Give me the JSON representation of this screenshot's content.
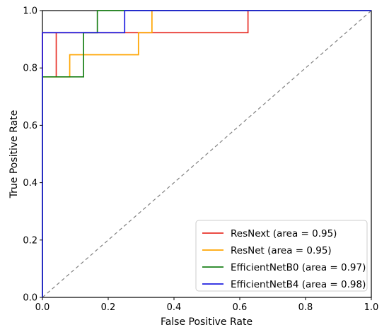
{
  "chart_data": {
    "type": "line",
    "title": "",
    "xlabel": "False Positive Rate",
    "ylabel": "True Positive Rate",
    "xlim": [
      0.0,
      1.0
    ],
    "ylim": [
      0.0,
      1.0
    ],
    "x_ticks": [
      "0.0",
      "0.2",
      "0.4",
      "0.6",
      "0.8",
      "1.0"
    ],
    "y_ticks": [
      "0.0",
      "0.2",
      "0.4",
      "0.6",
      "0.8",
      "1.0"
    ],
    "grid": false,
    "legend_position": "bottom-right",
    "diagonal": {
      "style": "dashed",
      "color": "#808080",
      "x": [
        0,
        1
      ],
      "y": [
        0,
        1
      ]
    },
    "series": [
      {
        "name": "ResNext (area = 0.95)",
        "color": "#e8322a",
        "x": [
          0,
          0,
          0.042,
          0.042,
          0.042,
          0.333,
          0.625,
          0.625,
          1.0
        ],
        "y": [
          0,
          0.923,
          0.923,
          0.769,
          0.923,
          0.923,
          0.923,
          1.0,
          1.0
        ]
      },
      {
        "name": "ResNet (area = 0.95)",
        "color": "#ffa500",
        "x": [
          0,
          0,
          0.042,
          0.083,
          0.083,
          0.292,
          0.292,
          0.333,
          0.333,
          1.0
        ],
        "y": [
          0,
          0.769,
          0.769,
          0.769,
          0.846,
          0.846,
          0.923,
          0.923,
          1.0,
          1.0
        ]
      },
      {
        "name": "EfficientNetB0 (area = 0.97)",
        "color": "#1a8018",
        "x": [
          0,
          0,
          0.125,
          0.125,
          0.167,
          0.167,
          1.0
        ],
        "y": [
          0,
          0.769,
          0.769,
          0.923,
          0.923,
          1.0,
          1.0
        ]
      },
      {
        "name": "EfficientNetB4 (area = 0.98)",
        "color": "#1f1fe0",
        "x": [
          0,
          0,
          0.25,
          0.25,
          1.0
        ],
        "y": [
          0,
          0.923,
          0.923,
          1.0,
          1.0
        ]
      }
    ]
  }
}
